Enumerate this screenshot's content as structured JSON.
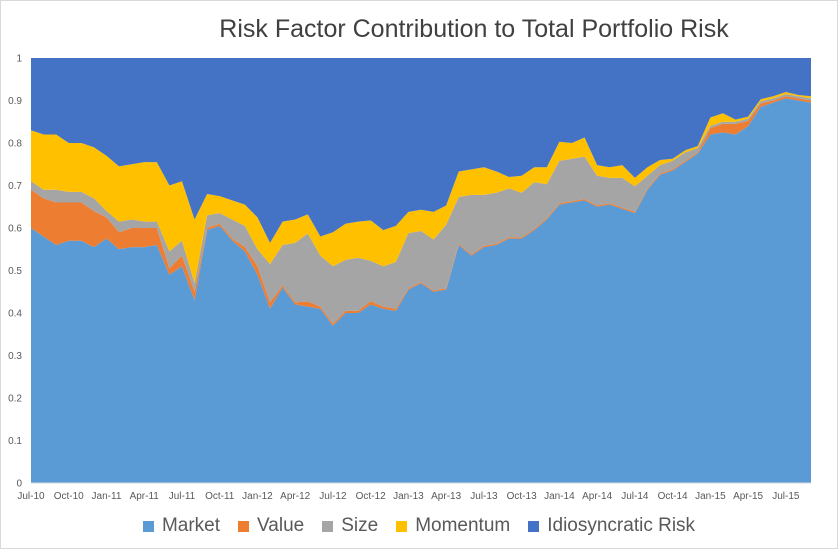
{
  "chart_data": {
    "type": "area",
    "stacked": true,
    "title": "Risk Factor Contribution to Total Portfolio Risk",
    "xlabel": "",
    "ylabel": "",
    "ylim": [
      0,
      1
    ],
    "grid": false,
    "legend_position": "bottom",
    "y_ticks": [
      "0",
      "0.1",
      "0.2",
      "0.3",
      "0.4",
      "0.5",
      "0.6",
      "0.7",
      "0.8",
      "0.9",
      "1"
    ],
    "x_tick_labels": [
      "Jul-10",
      "Oct-10",
      "Jan-11",
      "Apr-11",
      "Jul-11",
      "Oct-11",
      "Jan-12",
      "Apr-12",
      "Jul-12",
      "Oct-12",
      "Jan-13",
      "Apr-13",
      "Jul-13",
      "Oct-13",
      "Jan-14",
      "Apr-14",
      "Jul-14",
      "Oct-14",
      "Jan-15",
      "Apr-15",
      "Jul-15"
    ],
    "x": [
      "Jul-10",
      "Aug-10",
      "Sep-10",
      "Oct-10",
      "Nov-10",
      "Dec-10",
      "Jan-11",
      "Feb-11",
      "Mar-11",
      "Apr-11",
      "May-11",
      "Jun-11",
      "Jul-11",
      "Aug-11",
      "Sep-11",
      "Oct-11",
      "Nov-11",
      "Dec-11",
      "Jan-12",
      "Feb-12",
      "Mar-12",
      "Apr-12",
      "May-12",
      "Jun-12",
      "Jul-12",
      "Aug-12",
      "Sep-12",
      "Oct-12",
      "Nov-12",
      "Dec-12",
      "Jan-13",
      "Feb-13",
      "Mar-13",
      "Apr-13",
      "May-13",
      "Jun-13",
      "Jul-13",
      "Aug-13",
      "Sep-13",
      "Oct-13",
      "Nov-13",
      "Dec-13",
      "Jan-14",
      "Feb-14",
      "Mar-14",
      "Apr-14",
      "May-14",
      "Jun-14",
      "Jul-14",
      "Aug-14",
      "Sep-14",
      "Oct-14",
      "Nov-14",
      "Dec-14",
      "Jan-15",
      "Feb-15",
      "Mar-15",
      "Apr-15",
      "May-15",
      "Jun-15",
      "Jul-15",
      "Aug-15",
      "Sep-15"
    ],
    "series": [
      {
        "name": "Market",
        "color": "#5b9bd5",
        "values": [
          0.6,
          0.58,
          0.56,
          0.57,
          0.57,
          0.555,
          0.575,
          0.55,
          0.555,
          0.555,
          0.56,
          0.49,
          0.51,
          0.43,
          0.595,
          0.605,
          0.57,
          0.545,
          0.49,
          0.41,
          0.46,
          0.42,
          0.415,
          0.41,
          0.37,
          0.4,
          0.4,
          0.42,
          0.41,
          0.405,
          0.455,
          0.47,
          0.45,
          0.455,
          0.56,
          0.535,
          0.555,
          0.56,
          0.575,
          0.575,
          0.595,
          0.62,
          0.655,
          0.66,
          0.665,
          0.65,
          0.655,
          0.645,
          0.635,
          0.69,
          0.725,
          0.735,
          0.755,
          0.775,
          0.82,
          0.825,
          0.82,
          0.84,
          0.885,
          0.895,
          0.905,
          0.9,
          0.895
        ]
      },
      {
        "name": "Value",
        "color": "#ed7d31",
        "values": [
          0.09,
          0.09,
          0.1,
          0.09,
          0.09,
          0.085,
          0.05,
          0.04,
          0.045,
          0.045,
          0.04,
          0.015,
          0.025,
          0.02,
          0.005,
          0.005,
          0.005,
          0.01,
          0.02,
          0.015,
          0.005,
          0.005,
          0.012,
          0.005,
          0.005,
          0.005,
          0.005,
          0.008,
          0.005,
          0.005,
          0.003,
          0.003,
          0.003,
          0.003,
          0.003,
          0.003,
          0.003,
          0.003,
          0.003,
          0.003,
          0.003,
          0.003,
          0.003,
          0.003,
          0.003,
          0.003,
          0.003,
          0.003,
          0.003,
          0.003,
          0.003,
          0.003,
          0.003,
          0.003,
          0.015,
          0.02,
          0.025,
          0.012,
          0.008,
          0.005,
          0.005,
          0.005,
          0.005
        ]
      },
      {
        "name": "Size",
        "color": "#a5a5a5",
        "values": [
          0.02,
          0.02,
          0.03,
          0.025,
          0.025,
          0.03,
          0.015,
          0.025,
          0.02,
          0.015,
          0.015,
          0.04,
          0.035,
          0.02,
          0.03,
          0.025,
          0.045,
          0.05,
          0.04,
          0.09,
          0.095,
          0.14,
          0.16,
          0.12,
          0.135,
          0.12,
          0.125,
          0.095,
          0.095,
          0.11,
          0.13,
          0.12,
          0.12,
          0.15,
          0.11,
          0.14,
          0.12,
          0.12,
          0.115,
          0.105,
          0.11,
          0.08,
          0.1,
          0.1,
          0.1,
          0.07,
          0.06,
          0.07,
          0.06,
          0.03,
          0.02,
          0.02,
          0.02,
          0.01,
          0.005,
          0.005,
          0.005,
          0.005,
          0.005,
          0.005,
          0.005,
          0.005,
          0.005
        ]
      },
      {
        "name": "Momentum",
        "color": "#ffc000",
        "values": [
          0.12,
          0.13,
          0.13,
          0.115,
          0.115,
          0.12,
          0.13,
          0.13,
          0.13,
          0.14,
          0.14,
          0.155,
          0.14,
          0.15,
          0.05,
          0.04,
          0.045,
          0.05,
          0.075,
          0.05,
          0.055,
          0.055,
          0.045,
          0.045,
          0.08,
          0.085,
          0.085,
          0.095,
          0.085,
          0.085,
          0.05,
          0.05,
          0.065,
          0.045,
          0.06,
          0.06,
          0.065,
          0.05,
          0.027,
          0.04,
          0.035,
          0.04,
          0.045,
          0.037,
          0.045,
          0.025,
          0.025,
          0.03,
          0.02,
          0.02,
          0.012,
          0.005,
          0.005,
          0.005,
          0.02,
          0.02,
          0.005,
          0.005,
          0.005,
          0.005,
          0.005,
          0.003,
          0.005
        ]
      },
      {
        "name": "Idiosyncratic Risk",
        "color": "#4472c4",
        "values": [
          0.17,
          0.18,
          0.18,
          0.2,
          0.2,
          0.21,
          0.23,
          0.255,
          0.25,
          0.245,
          0.245,
          0.3,
          0.29,
          0.38,
          0.32,
          0.325,
          0.335,
          0.345,
          0.375,
          0.435,
          0.385,
          0.38,
          0.368,
          0.42,
          0.41,
          0.39,
          0.385,
          0.382,
          0.405,
          0.395,
          0.362,
          0.357,
          0.362,
          0.347,
          0.267,
          0.262,
          0.257,
          0.267,
          0.28,
          0.277,
          0.257,
          0.257,
          0.197,
          0.2,
          0.187,
          0.252,
          0.257,
          0.252,
          0.282,
          0.257,
          0.24,
          0.237,
          0.217,
          0.207,
          0.14,
          0.13,
          0.145,
          0.138,
          0.097,
          0.09,
          0.08,
          0.087,
          0.09
        ]
      }
    ]
  },
  "legend": {
    "items": [
      {
        "label": "Market",
        "color": "#5b9bd5"
      },
      {
        "label": "Value",
        "color": "#ed7d31"
      },
      {
        "label": "Size",
        "color": "#a5a5a5"
      },
      {
        "label": "Momentum",
        "color": "#ffc000"
      },
      {
        "label": "Idiosyncratic Risk",
        "color": "#4472c4"
      }
    ]
  }
}
